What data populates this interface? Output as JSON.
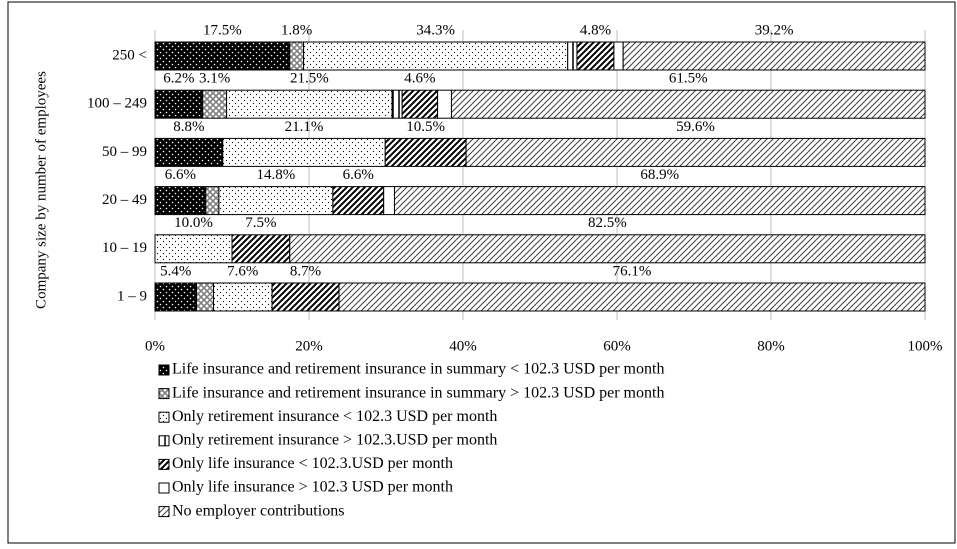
{
  "chart_data": {
    "type": "stacked-barh",
    "ylabel": "Company size by number of employees",
    "categories": [
      "250 <",
      "100 – 249",
      "50 – 99",
      "20 – 49",
      "10 – 19",
      "1 – 9"
    ],
    "series": [
      {
        "name": "Life insurance and retirement insurance in summary < 102.3 USD per month",
        "color": "#000000",
        "values": [
          17.5,
          6.2,
          8.8,
          6.6,
          0,
          5.4
        ],
        "value_labels": [
          "17.5%",
          "6.2%",
          "8.8%",
          "6.6%",
          null,
          "5.4%"
        ]
      },
      {
        "name": "Life insurance and retirement insurance in summary > 102.3 USD per month",
        "color": "#808080",
        "values": [
          1.8,
          3.1,
          0,
          1.7,
          0,
          2.2
        ],
        "value_labels": [
          "1.8%",
          "3.1%",
          null,
          null,
          null,
          null
        ]
      },
      {
        "name": "Only retirement insurance < 102.3 USD per month",
        "color": "#000000",
        "values": [
          34.3,
          21.5,
          21.1,
          14.8,
          10.0,
          7.6
        ],
        "value_labels": [
          "34.3%",
          "21.5%",
          "21.1%",
          "14.8%",
          "10.0%",
          "7.6%"
        ]
      },
      {
        "name": "Only retirement insurance > 102.3.USD per month",
        "color": "#000000",
        "values": [
          1.2,
          1.3,
          0,
          0,
          0,
          0
        ],
        "value_labels": [
          null,
          null,
          null,
          null,
          null,
          null
        ]
      },
      {
        "name": "Only life insurance < 102.3.USD per month",
        "color": "#000000",
        "values": [
          4.8,
          4.6,
          10.5,
          6.6,
          7.5,
          8.7
        ],
        "value_labels": [
          "4.8%",
          "4.6%",
          "10.5%",
          "6.6%",
          "7.5%",
          "8.7%"
        ]
      },
      {
        "name": "Only life insurance > 102.3 USD per month",
        "color": "#ffffff",
        "values": [
          1.2,
          1.8,
          0,
          1.4,
          0,
          0
        ],
        "value_labels": [
          null,
          null,
          null,
          null,
          null,
          null
        ]
      },
      {
        "name": "No employer contributions",
        "color": "#404040",
        "values": [
          39.2,
          61.5,
          59.6,
          68.9,
          82.5,
          76.1
        ],
        "value_labels": [
          "39.2%",
          "61.5%",
          "59.6%",
          "68.9%",
          "82.5%",
          "76.1%"
        ]
      }
    ],
    "xlim": [
      0,
      100
    ],
    "xticks": [
      {
        "value": 0,
        "label": "0%"
      },
      {
        "value": 20,
        "label": "20%"
      },
      {
        "value": 40,
        "label": "40%"
      },
      {
        "value": 60,
        "label": "60%"
      },
      {
        "value": 80,
        "label": "80%"
      },
      {
        "value": 100,
        "label": "100%"
      }
    ],
    "grid": true
  }
}
